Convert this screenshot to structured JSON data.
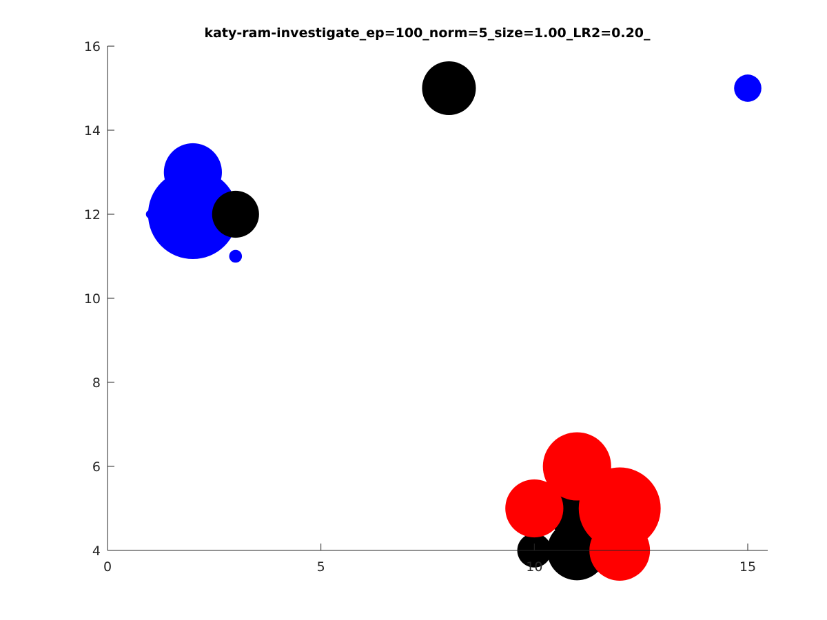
{
  "chart_data": {
    "type": "scatter",
    "title": "katy-ram-investigate_ep=100_norm=5_size=1.00_LR2=0.20_",
    "xlabel": "",
    "ylabel": "",
    "xlim": [
      0,
      15
    ],
    "ylim": [
      4,
      16
    ],
    "xticks": [
      "0",
      "5",
      "10",
      "15"
    ],
    "yticks": [
      "4",
      "6",
      "8",
      "10",
      "12",
      "14",
      "16"
    ],
    "grid": false,
    "bubble_size_unit": "marker radius in data units (x)",
    "series": [
      {
        "color": "#0000ff",
        "points": [
          {
            "x": 2,
            "y": 12,
            "r": 1.05
          },
          {
            "x": 2,
            "y": 13,
            "r": 0.68
          },
          {
            "x": 1,
            "y": 12,
            "r": 0.1
          },
          {
            "x": 3,
            "y": 11,
            "r": 0.15
          },
          {
            "x": 15,
            "y": 15,
            "r": 0.32
          }
        ]
      },
      {
        "color": "#000000",
        "points": [
          {
            "x": 8,
            "y": 15,
            "r": 0.63
          },
          {
            "x": 3,
            "y": 12,
            "r": 0.55
          },
          {
            "x": 10,
            "y": 4,
            "r": 0.4
          },
          {
            "x": 11,
            "y": 4,
            "r": 0.7
          },
          {
            "x": 11,
            "y": 5,
            "r": 0.72
          }
        ]
      },
      {
        "color": "#ff0000",
        "points": [
          {
            "x": 10,
            "y": 5,
            "r": 0.68
          },
          {
            "x": 11,
            "y": 6,
            "r": 0.8
          },
          {
            "x": 12,
            "y": 5,
            "r": 0.96
          },
          {
            "x": 12,
            "y": 4,
            "r": 0.71
          }
        ]
      }
    ]
  }
}
